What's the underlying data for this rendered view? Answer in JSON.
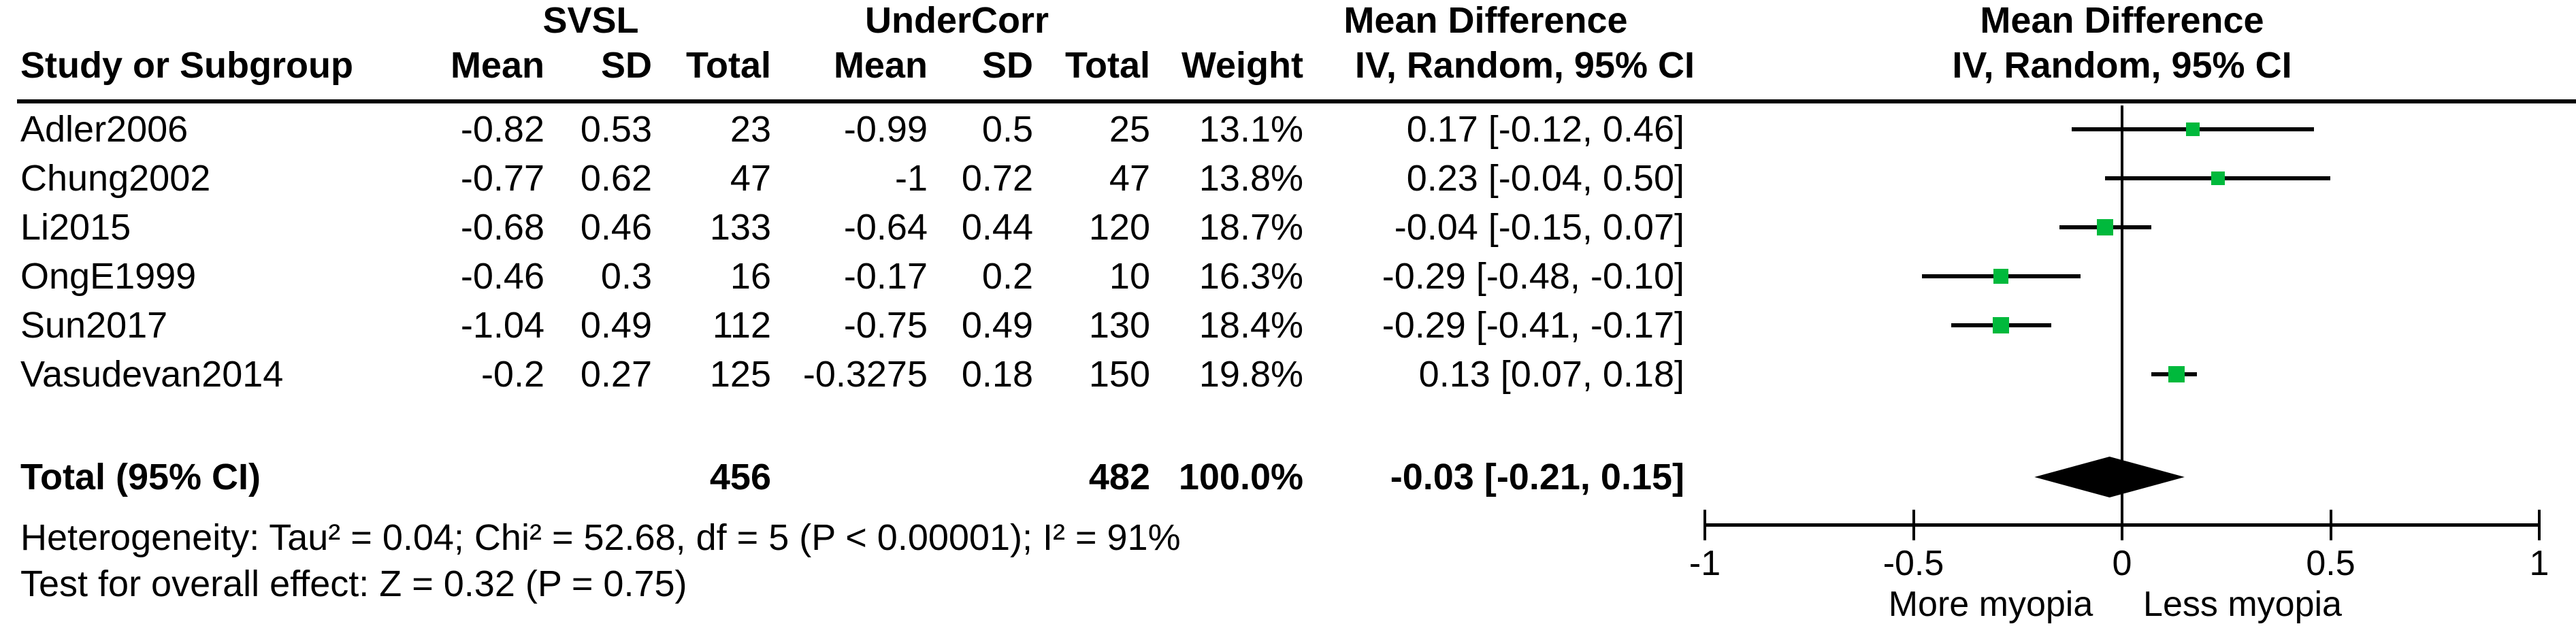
{
  "header": {
    "study_col": "Study or Subgroup",
    "group1": "SVSL",
    "group2": "UnderCorr",
    "mean": "Mean",
    "sd": "SD",
    "total": "Total",
    "weight": "Weight",
    "md_col_title": "Mean Difference",
    "md_col_sub": "IV, Random, 95% CI",
    "md_plot_title": "Mean Difference",
    "md_plot_sub": "IV, Random, 95% CI"
  },
  "studies": [
    {
      "name": "Adler2006",
      "g1_mean": "-0.82",
      "g1_sd": "0.53",
      "g1_total": "23",
      "g2_mean": "-0.99",
      "g2_sd": "0.5",
      "g2_total": "25",
      "weight": "13.1%",
      "ci_text": "0.17 [-0.12, 0.46]",
      "md": 0.17,
      "lo": -0.12,
      "hi": 0.46,
      "weight_pct": 13.1
    },
    {
      "name": "Chung2002",
      "g1_mean": "-0.77",
      "g1_sd": "0.62",
      "g1_total": "47",
      "g2_mean": "-1",
      "g2_sd": "0.72",
      "g2_total": "47",
      "weight": "13.8%",
      "ci_text": "0.23 [-0.04, 0.50]",
      "md": 0.23,
      "lo": -0.04,
      "hi": 0.5,
      "weight_pct": 13.8
    },
    {
      "name": "Li2015",
      "g1_mean": "-0.68",
      "g1_sd": "0.46",
      "g1_total": "133",
      "g2_mean": "-0.64",
      "g2_sd": "0.44",
      "g2_total": "120",
      "weight": "18.7%",
      "ci_text": "-0.04 [-0.15, 0.07]",
      "md": -0.04,
      "lo": -0.15,
      "hi": 0.07,
      "weight_pct": 18.7
    },
    {
      "name": "OngE1999",
      "g1_mean": "-0.46",
      "g1_sd": "0.3",
      "g1_total": "16",
      "g2_mean": "-0.17",
      "g2_sd": "0.2",
      "g2_total": "10",
      "weight": "16.3%",
      "ci_text": "-0.29 [-0.48, -0.10]",
      "md": -0.29,
      "lo": -0.48,
      "hi": -0.1,
      "weight_pct": 16.3
    },
    {
      "name": "Sun2017",
      "g1_mean": "-1.04",
      "g1_sd": "0.49",
      "g1_total": "112",
      "g2_mean": "-0.75",
      "g2_sd": "0.49",
      "g2_total": "130",
      "weight": "18.4%",
      "ci_text": "-0.29 [-0.41, -0.17]",
      "md": -0.29,
      "lo": -0.41,
      "hi": -0.17,
      "weight_pct": 18.4
    },
    {
      "name": "Vasudevan2014",
      "g1_mean": "-0.2",
      "g1_sd": "0.27",
      "g1_total": "125",
      "g2_mean": "-0.3275",
      "g2_sd": "0.18",
      "g2_total": "150",
      "weight": "19.8%",
      "ci_text": "0.13 [0.07, 0.18]",
      "md": 0.13,
      "lo": 0.07,
      "hi": 0.18,
      "weight_pct": 19.8
    }
  ],
  "total_row": {
    "label": "Total (95% CI)",
    "g1_total": "456",
    "g2_total": "482",
    "weight": "100.0%",
    "ci_text": "-0.03 [-0.21, 0.15]",
    "md": -0.03,
    "lo": -0.21,
    "hi": 0.15
  },
  "footer": {
    "heterogeneity": "Heterogeneity: Tau² = 0.04; Chi² = 52.68, df = 5 (P < 0.00001); I² = 91%",
    "overall_effect": "Test for overall effect: Z = 0.32 (P = 0.75)"
  },
  "axis": {
    "ticks": [
      {
        "label": "-1",
        "value": -1
      },
      {
        "label": "-0.5",
        "value": -0.5
      },
      {
        "label": "0",
        "value": 0
      },
      {
        "label": "0.5",
        "value": 0.5
      },
      {
        "label": "1",
        "value": 1
      }
    ],
    "left_label": "More myopia",
    "right_label": "Less myopia",
    "min": -1,
    "max": 1
  },
  "colors": {
    "marker_green": "#00b93c",
    "line_black": "#000000"
  },
  "chart_data": {
    "type": "scatter",
    "subtype": "forest_plot",
    "title": "Mean Difference",
    "subtitle": "IV, Random, 95% CI",
    "effect_measure": "Mean Difference (IV, Random, 95% CI)",
    "x_axis": {
      "min": -1,
      "max": 1,
      "ticks": [
        -1,
        -0.5,
        0,
        0.5,
        1
      ],
      "left_direction_label": "More myopia",
      "right_direction_label": "Less myopia"
    },
    "studies": [
      {
        "name": "Adler2006",
        "md": 0.17,
        "ci_low": -0.12,
        "ci_high": 0.46,
        "weight_pct": 13.1
      },
      {
        "name": "Chung2002",
        "md": 0.23,
        "ci_low": -0.04,
        "ci_high": 0.5,
        "weight_pct": 13.8
      },
      {
        "name": "Li2015",
        "md": -0.04,
        "ci_low": -0.15,
        "ci_high": 0.07,
        "weight_pct": 18.7
      },
      {
        "name": "OngE1999",
        "md": -0.29,
        "ci_low": -0.48,
        "ci_high": -0.1,
        "weight_pct": 16.3
      },
      {
        "name": "Sun2017",
        "md": -0.29,
        "ci_low": -0.41,
        "ci_high": -0.17,
        "weight_pct": 18.4
      },
      {
        "name": "Vasudevan2014",
        "md": 0.13,
        "ci_low": 0.07,
        "ci_high": 0.18,
        "weight_pct": 19.8
      }
    ],
    "overall": {
      "label": "Total (95% CI)",
      "md": -0.03,
      "ci_low": -0.21,
      "ci_high": 0.15,
      "weight_pct": 100.0,
      "heterogeneity": "Tau² = 0.04; Chi² = 52.68, df = 5 (P < 0.00001); I² = 91%",
      "test_overall": "Z = 0.32 (P = 0.75)"
    }
  }
}
